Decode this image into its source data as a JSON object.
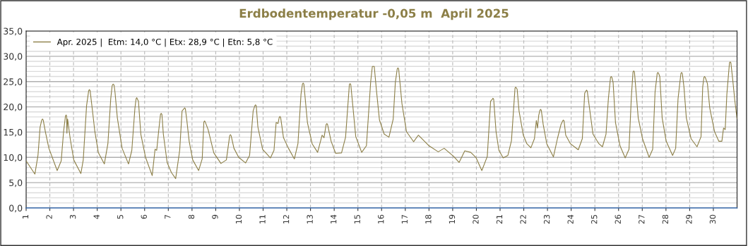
{
  "chart_data": {
    "type": "line",
    "title": "Erdbodentemperatur -0,05 m  April 2025",
    "xlim": [
      1,
      31
    ],
    "xticks": [
      1,
      2,
      3,
      4,
      5,
      6,
      7,
      8,
      9,
      10,
      11,
      12,
      13,
      14,
      15,
      16,
      17,
      18,
      19,
      20,
      21,
      22,
      23,
      24,
      25,
      26,
      27,
      28,
      29,
      30
    ],
    "ylim": [
      0,
      35
    ],
    "yticks": [
      {
        "value": 0,
        "label": "0,0"
      },
      {
        "value": 1,
        "label": null
      },
      {
        "value": 2,
        "label": null
      },
      {
        "value": 3,
        "label": null
      },
      {
        "value": 4,
        "label": null
      },
      {
        "value": 5,
        "label": "5,0"
      },
      {
        "value": 6,
        "label": null
      },
      {
        "value": 7,
        "label": null
      },
      {
        "value": 8,
        "label": null
      },
      {
        "value": 9,
        "label": null
      },
      {
        "value": 10,
        "label": "10,0"
      },
      {
        "value": 11,
        "label": null
      },
      {
        "value": 12,
        "label": null
      },
      {
        "value": 13,
        "label": null
      },
      {
        "value": 14,
        "label": null
      },
      {
        "value": 15,
        "label": "15,0"
      },
      {
        "value": 16,
        "label": null
      },
      {
        "value": 17,
        "label": null
      },
      {
        "value": 18,
        "label": null
      },
      {
        "value": 19,
        "label": null
      },
      {
        "value": 20,
        "label": "20,0"
      },
      {
        "value": 21,
        "label": null
      },
      {
        "value": 22,
        "label": null
      },
      {
        "value": 23,
        "label": null
      },
      {
        "value": 24,
        "label": null
      },
      {
        "value": 25,
        "label": "25,0"
      },
      {
        "value": 26,
        "label": null
      },
      {
        "value": 27,
        "label": null
      },
      {
        "value": 28,
        "label": null
      },
      {
        "value": 29,
        "label": null
      },
      {
        "value": 30,
        "label": "30,0"
      },
      {
        "value": 31,
        "label": null
      },
      {
        "value": 32,
        "label": null
      },
      {
        "value": 33,
        "label": null
      },
      {
        "value": 34,
        "label": null
      },
      {
        "value": 35,
        "label": "35,0"
      }
    ],
    "grid": true,
    "legend": "top left",
    "marker": "none",
    "line_style": "solid",
    "series": [
      {
        "name": "Apr. 2025 |  Etm: 14,0 °C | Etx: 28,9 °C | Etn: 5,8 °C",
        "color": "#8c7f47",
        "x": [
          1.0,
          1.37,
          1.5,
          1.59,
          1.66,
          1.69,
          1.72,
          1.81,
          1.96,
          2.31,
          2.48,
          2.58,
          2.66,
          2.69,
          2.71,
          2.72,
          2.75,
          2.86,
          3.01,
          3.31,
          3.41,
          3.55,
          3.64,
          3.67,
          3.7,
          3.8,
          3.9,
          4.05,
          4.3,
          4.45,
          4.57,
          4.63,
          4.67,
          4.71,
          4.75,
          4.85,
          5.05,
          5.32,
          5.46,
          5.59,
          5.64,
          5.67,
          5.74,
          5.84,
          6.04,
          6.32,
          6.44,
          6.51,
          6.59,
          6.67,
          6.7,
          6.73,
          6.79,
          6.95,
          7.13,
          7.31,
          7.48,
          7.58,
          7.66,
          7.69,
          7.72,
          7.78,
          7.88,
          8.03,
          8.28,
          8.43,
          8.5,
          8.53,
          8.56,
          8.68,
          8.92,
          9.22,
          9.45,
          9.59,
          9.62,
          9.65,
          9.77,
          9.97,
          10.26,
          10.43,
          10.58,
          10.65,
          10.68,
          10.71,
          10.78,
          10.98,
          11.31,
          11.46,
          11.55,
          11.63,
          11.68,
          11.71,
          11.74,
          11.86,
          12.07,
          12.32,
          12.47,
          12.6,
          12.66,
          12.69,
          12.72,
          12.87,
          13.07,
          13.3,
          13.49,
          13.57,
          13.66,
          13.69,
          13.72,
          13.87,
          14.06,
          14.31,
          14.48,
          14.64,
          14.67,
          14.7,
          14.91,
          15.16,
          15.36,
          15.54,
          15.61,
          15.69,
          15.78,
          15.91,
          16.11,
          16.31,
          16.49,
          16.58,
          16.66,
          16.69,
          16.72,
          16.86,
          17.05,
          17.35,
          17.55,
          18.0,
          18.39,
          18.64,
          19.04,
          19.27,
          19.51,
          19.76,
          19.98,
          20.23,
          20.46,
          20.6,
          20.67,
          20.7,
          20.73,
          20.83,
          20.95,
          21.13,
          21.33,
          21.48,
          21.6,
          21.63,
          21.66,
          21.72,
          21.8,
          21.98,
          22.13,
          22.3,
          22.45,
          22.53,
          22.58,
          22.63,
          22.68,
          22.71,
          22.74,
          22.82,
          22.97,
          23.25,
          23.42,
          23.57,
          23.64,
          23.67,
          23.7,
          23.77,
          23.97,
          24.3,
          24.47,
          24.57,
          24.62,
          24.65,
          24.68,
          24.75,
          24.92,
          25.17,
          25.32,
          25.47,
          25.57,
          25.66,
          25.69,
          25.72,
          25.77,
          25.87,
          26.06,
          26.28,
          26.44,
          26.54,
          26.61,
          26.64,
          26.67,
          26.74,
          26.83,
          27.01,
          27.29,
          27.44,
          27.54,
          27.63,
          27.66,
          27.69,
          27.74,
          27.84,
          28.01,
          28.28,
          28.41,
          28.51,
          28.63,
          28.66,
          28.69,
          28.76,
          28.86,
          29.06,
          29.31,
          29.48,
          29.55,
          29.6,
          29.63,
          29.66,
          29.75,
          29.85,
          30.05,
          30.23,
          30.36,
          30.43,
          30.5,
          30.57,
          30.68,
          30.71,
          30.74,
          30.81,
          30.91,
          31.0
        ],
        "values": [
          9.3,
          6.7,
          10.4,
          16.0,
          17.4,
          17.6,
          17.4,
          15.1,
          11.8,
          7.4,
          9.3,
          15.1,
          18.2,
          18.4,
          18.1,
          14.8,
          17.6,
          13.7,
          9.5,
          6.8,
          9.5,
          20.2,
          23.2,
          23.4,
          23.2,
          19.2,
          15.1,
          10.9,
          8.7,
          12.7,
          21.6,
          24.2,
          24.5,
          24.3,
          22.9,
          17.8,
          11.8,
          8.7,
          11.4,
          19.7,
          21.6,
          21.8,
          21.1,
          14.6,
          10.0,
          6.4,
          11.6,
          11.4,
          15.1,
          18.5,
          18.7,
          18.5,
          14.6,
          9.0,
          7.0,
          5.8,
          11.4,
          19.2,
          19.6,
          19.8,
          19.6,
          17.4,
          13.2,
          9.5,
          7.4,
          9.7,
          17.0,
          17.2,
          17.0,
          15.5,
          10.9,
          8.8,
          9.5,
          14.3,
          14.5,
          14.3,
          11.8,
          10.0,
          8.9,
          10.4,
          19.2,
          20.2,
          20.4,
          20.2,
          16.0,
          11.6,
          9.9,
          11.4,
          16.9,
          16.7,
          17.9,
          18.1,
          17.9,
          13.9,
          11.8,
          9.7,
          12.7,
          22.5,
          24.5,
          24.7,
          24.5,
          16.9,
          12.7,
          11.0,
          14.4,
          13.9,
          16.5,
          16.7,
          16.5,
          13.2,
          10.8,
          10.9,
          14.0,
          24.4,
          24.6,
          24.4,
          14.1,
          11.0,
          12.3,
          25.0,
          28.0,
          28.0,
          23.4,
          17.4,
          14.6,
          14.0,
          17.6,
          24.8,
          27.5,
          27.7,
          27.5,
          20.6,
          15.1,
          13.1,
          14.4,
          12.3,
          11.1,
          11.8,
          10.2,
          9.0,
          11.3,
          11.0,
          10.0,
          7.4,
          10.2,
          21.1,
          21.5,
          21.7,
          21.5,
          15.1,
          11.4,
          9.9,
          10.4,
          13.3,
          21.6,
          23.7,
          23.9,
          23.5,
          19.2,
          14.4,
          12.7,
          11.9,
          13.7,
          17.3,
          15.8,
          18.3,
          19.3,
          19.5,
          19.3,
          16.5,
          12.7,
          10.1,
          13.7,
          16.5,
          17.2,
          17.4,
          17.2,
          14.4,
          12.7,
          11.5,
          13.7,
          22.7,
          23.1,
          23.3,
          23.1,
          20.6,
          14.6,
          12.7,
          12.1,
          14.6,
          21.6,
          25.8,
          26.0,
          25.8,
          24.8,
          16.9,
          12.3,
          9.9,
          11.6,
          22.0,
          26.9,
          27.1,
          26.9,
          22.9,
          17.8,
          13.7,
          10.0,
          11.6,
          22.9,
          26.6,
          26.8,
          26.6,
          26.0,
          17.8,
          13.2,
          10.4,
          11.8,
          21.6,
          26.6,
          26.8,
          26.6,
          23.9,
          17.8,
          13.7,
          12.1,
          14.1,
          23.9,
          25.8,
          26.0,
          25.8,
          24.6,
          19.7,
          15.1,
          13.2,
          13.2,
          15.8,
          15.5,
          22.5,
          28.7,
          28.9,
          28.7,
          25.7,
          21.1,
          17.6
        ]
      }
    ]
  }
}
